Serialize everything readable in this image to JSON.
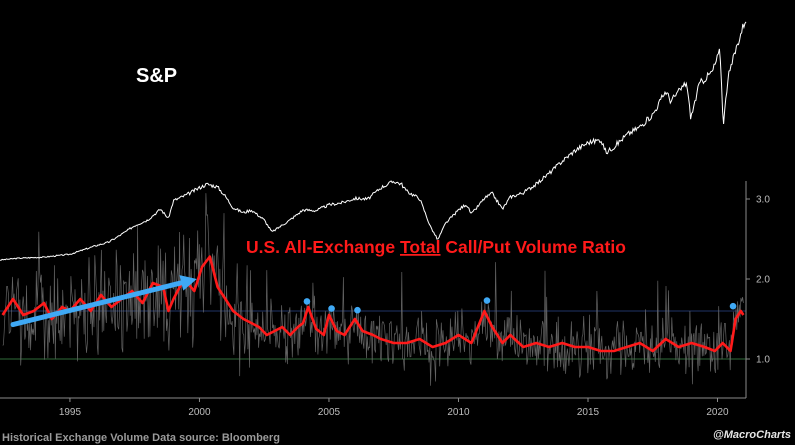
{
  "chart_data": {
    "type": "line",
    "title": "",
    "xlabel": "",
    "ylabel": "",
    "xlim": [
      1992.3,
      2021.1
    ],
    "ylim": [
      0.55,
      3.2
    ],
    "x_ticks": [
      1995,
      2000,
      2005,
      2010,
      2015,
      2020
    ],
    "x_tick_labels": [
      "1995",
      "2000",
      "2005",
      "2010",
      "2015",
      "2020"
    ],
    "y_ticks": [
      1.0,
      2.0,
      3.0
    ],
    "y_tick_labels": [
      "1.0",
      "2.0",
      "3.0"
    ],
    "y_axis_side": "right",
    "grid": false,
    "reference_lines": [
      {
        "y": 1.6,
        "color": "#1f3366"
      },
      {
        "y": 1.0,
        "color": "#2f6b3a"
      }
    ],
    "series": [
      {
        "name": "S&P",
        "color": "#ffffff",
        "scale": "separate",
        "x": [
          1992.3,
          1993.0,
          1994.0,
          1995.0,
          1995.5,
          1996.0,
          1996.5,
          1997.0,
          1997.5,
          1998.0,
          1998.5,
          1998.8,
          1999.0,
          1999.5,
          2000.0,
          2000.3,
          2000.7,
          2001.0,
          2001.3,
          2001.7,
          2002.0,
          2002.5,
          2002.8,
          2003.0,
          2003.5,
          2004.0,
          2004.5,
          2005.0,
          2005.5,
          2006.0,
          2006.5,
          2007.0,
          2007.5,
          2007.8,
          2008.0,
          2008.5,
          2008.9,
          2009.2,
          2009.5,
          2010.0,
          2010.3,
          2010.5,
          2011.0,
          2011.3,
          2011.7,
          2012.0,
          2012.5,
          2013.0,
          2013.5,
          2014.0,
          2014.5,
          2015.0,
          2015.5,
          2015.7,
          2016.0,
          2016.5,
          2017.0,
          2017.5,
          2018.0,
          2018.2,
          2018.8,
          2018.97,
          2019.3,
          2019.8,
          2020.0,
          2020.1,
          2020.22,
          2020.4,
          2020.7,
          2021.0,
          2021.1
        ],
        "values": [
          420,
          445,
          460,
          500,
          560,
          620,
          670,
          780,
          900,
          980,
          1130,
          1000,
          1250,
          1330,
          1430,
          1480,
          1440,
          1310,
          1150,
          1080,
          1120,
          980,
          810,
          860,
          980,
          1120,
          1110,
          1190,
          1220,
          1280,
          1270,
          1430,
          1520,
          1480,
          1380,
          1280,
          900,
          700,
          930,
          1120,
          1200,
          1060,
          1280,
          1350,
          1130,
          1300,
          1360,
          1480,
          1630,
          1800,
          1950,
          2060,
          2100,
          1920,
          2000,
          2170,
          2280,
          2450,
          2780,
          2640,
          2900,
          2400,
          2880,
          3050,
          3250,
          3350,
          2300,
          2950,
          3350,
          3700,
          3800
        ]
      },
      {
        "name": "U.S. All-Exchange Total Call/Put Volume Ratio",
        "color": "#ff1a1a",
        "x": [
          1992.4,
          1992.8,
          1993.2,
          1993.6,
          1994.0,
          1994.3,
          1994.7,
          1995.0,
          1995.4,
          1995.8,
          1996.2,
          1996.6,
          1997.0,
          1997.4,
          1997.8,
          1998.2,
          1998.6,
          1998.8,
          1999.0,
          1999.4,
          1999.8,
          2000.1,
          2000.4,
          2000.7,
          2001.0,
          2001.3,
          2001.7,
          2002.0,
          2002.3,
          2002.6,
          2002.9,
          2003.2,
          2003.5,
          2003.8,
          2004.0,
          2004.2,
          2004.5,
          2004.8,
          2005.0,
          2005.3,
          2005.6,
          2006.0,
          2006.3,
          2006.7,
          2007.0,
          2007.5,
          2008.0,
          2008.5,
          2009.0,
          2009.5,
          2010.0,
          2010.5,
          2011.0,
          2011.3,
          2011.7,
          2012.0,
          2012.5,
          2013.0,
          2013.5,
          2014.0,
          2014.5,
          2015.0,
          2015.5,
          2016.0,
          2016.5,
          2017.0,
          2017.5,
          2018.0,
          2018.5,
          2019.0,
          2019.5,
          2019.9,
          2020.2,
          2020.5,
          2020.7,
          2020.9,
          2021.0
        ],
        "values": [
          1.55,
          1.75,
          1.55,
          1.6,
          1.7,
          1.5,
          1.65,
          1.6,
          1.75,
          1.6,
          1.8,
          1.65,
          1.75,
          1.85,
          1.7,
          1.95,
          1.9,
          1.6,
          1.75,
          2.0,
          1.85,
          2.15,
          2.28,
          1.9,
          1.75,
          1.6,
          1.5,
          1.45,
          1.4,
          1.3,
          1.35,
          1.4,
          1.3,
          1.4,
          1.45,
          1.65,
          1.38,
          1.3,
          1.55,
          1.35,
          1.3,
          1.5,
          1.35,
          1.3,
          1.25,
          1.2,
          1.2,
          1.25,
          1.15,
          1.2,
          1.3,
          1.2,
          1.6,
          1.4,
          1.2,
          1.3,
          1.15,
          1.2,
          1.15,
          1.2,
          1.15,
          1.15,
          1.1,
          1.1,
          1.15,
          1.2,
          1.1,
          1.25,
          1.15,
          1.2,
          1.15,
          1.1,
          1.2,
          1.1,
          1.5,
          1.6,
          1.55
        ]
      }
    ],
    "highlight_points": [
      {
        "x": 2004.15,
        "y": 1.72
      },
      {
        "x": 2005.1,
        "y": 1.63
      },
      {
        "x": 2006.1,
        "y": 1.61
      },
      {
        "x": 2011.1,
        "y": 1.73
      },
      {
        "x": 2020.6,
        "y": 1.66
      }
    ],
    "highlight_color": "#3fa9f5",
    "trend_arrow": {
      "from": {
        "x": 1992.8,
        "y": 1.43
      },
      "to": {
        "x": 1999.9,
        "y": 2.0
      },
      "color": "#3fa9f5"
    }
  },
  "annotations": {
    "sp_label": "S&P",
    "ratio_title_before": "U.S. All-Exchange ",
    "ratio_title_underlined": "Total",
    "ratio_title_after": " Call/Put Volume Ratio",
    "footer_source": "Historical Exchange Volume Data source: Bloomberg",
    "credit": "@MacroCharts"
  }
}
